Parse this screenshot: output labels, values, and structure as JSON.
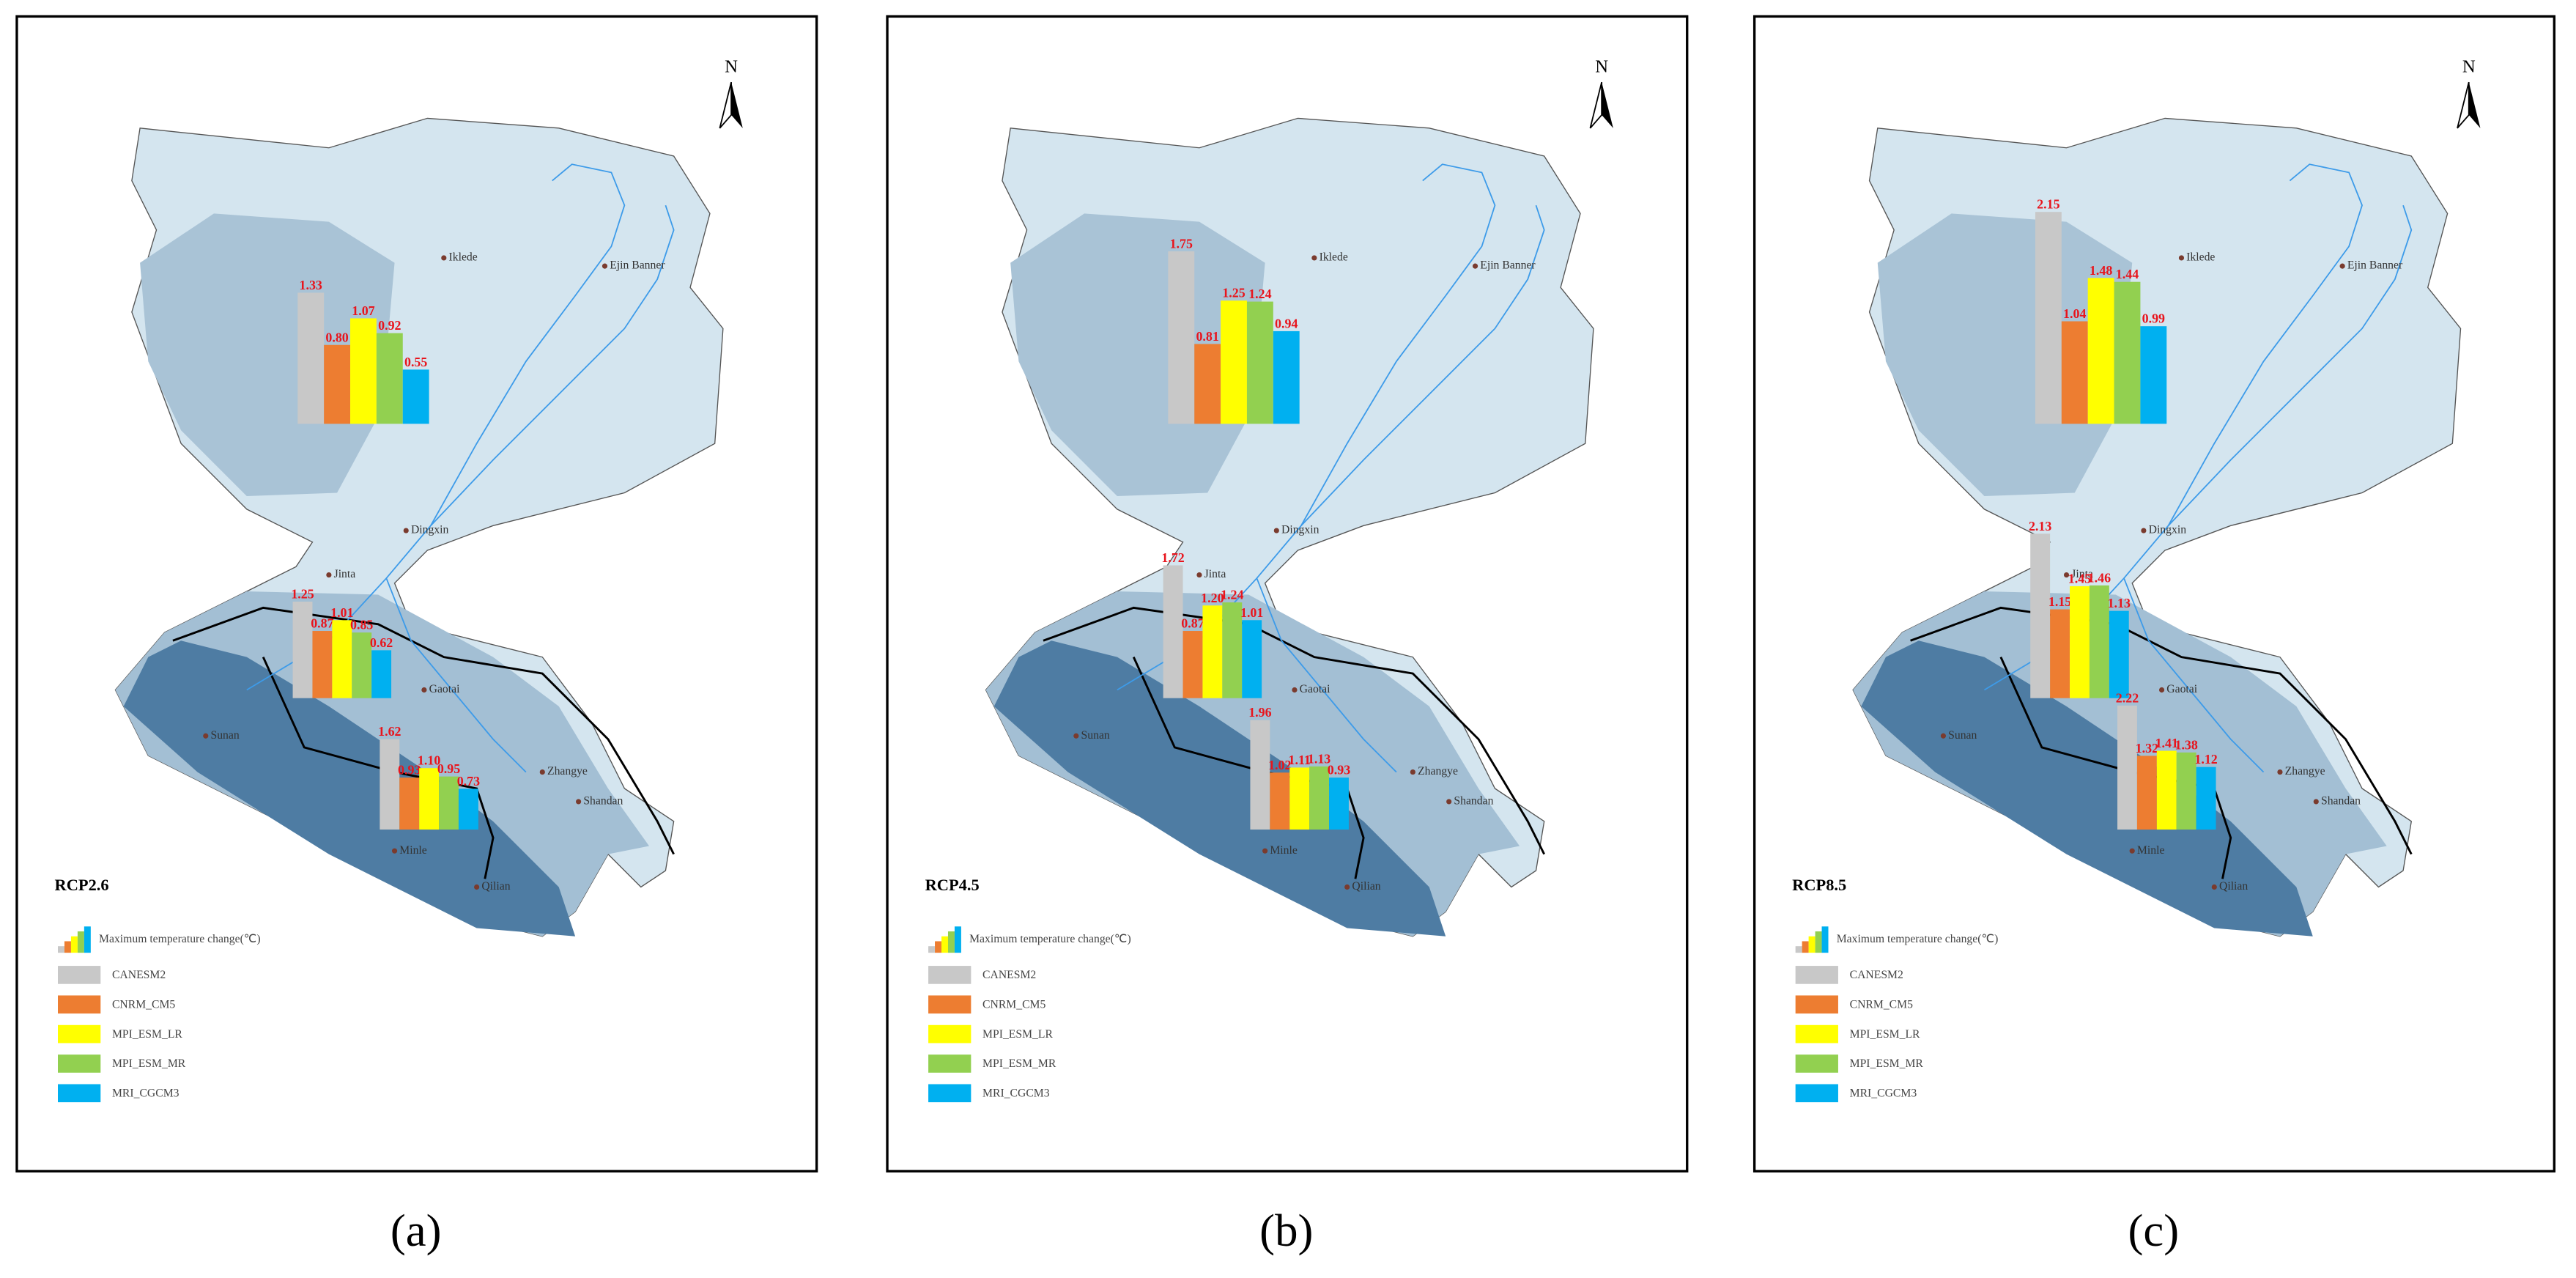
{
  "panels": [
    {
      "label": "(a)",
      "scenario": "RCP2.6",
      "groups": [
        {
          "values": [
            1.33,
            0.8,
            1.07,
            0.92,
            0.55
          ],
          "value_labels": [
            "1.33",
            "0.80",
            "1.07",
            "0.92",
            "0.55"
          ]
        },
        {
          "values": [
            1.25,
            0.87,
            1.01,
            0.85,
            0.62
          ],
          "value_labels": [
            "1.25",
            "0.87",
            "1.01",
            "0.85",
            "0.62"
          ]
        },
        {
          "values": [
            1.62,
            0.93,
            1.1,
            0.95,
            0.73
          ],
          "value_labels": [
            "1.62",
            "0.93",
            "1.10",
            "0.95",
            "0.73"
          ]
        }
      ]
    },
    {
      "label": "(b)",
      "scenario": "RCP4.5",
      "groups": [
        {
          "values": [
            1.75,
            0.81,
            1.25,
            1.24,
            0.94
          ],
          "value_labels": [
            "1.75",
            "0.81",
            "1.25",
            "1.24",
            "0.94"
          ]
        },
        {
          "values": [
            1.72,
            0.87,
            1.2,
            1.24,
            1.01
          ],
          "value_labels": [
            "1.72",
            "0.87",
            "1.20",
            "1.24",
            "1.01"
          ]
        },
        {
          "values": [
            1.96,
            1.02,
            1.11,
            1.13,
            0.93
          ],
          "value_labels": [
            "1.96",
            "1.02",
            "1.11",
            "1.13",
            "0.93"
          ]
        }
      ]
    },
    {
      "label": "(c)",
      "scenario": "RCP8.5",
      "groups": [
        {
          "values": [
            2.15,
            1.04,
            1.48,
            1.44,
            0.99
          ],
          "value_labels": [
            "2.15",
            "1.04",
            "1.48",
            "1.44",
            "0.99"
          ]
        },
        {
          "values": [
            2.13,
            1.15,
            1.45,
            1.46,
            1.13
          ],
          "value_labels": [
            "2.13",
            "1.15",
            "1.45",
            "1.46",
            "1.13"
          ]
        },
        {
          "values": [
            2.22,
            1.32,
            1.41,
            1.38,
            1.12
          ],
          "value_labels": [
            "2.22",
            "1.32",
            "1.41",
            "1.38",
            "1.12"
          ]
        }
      ]
    }
  ],
  "legend": {
    "title": "Maximum temperature change(℃)",
    "items": [
      {
        "name": "CANESM2",
        "color": "#c8c8c8"
      },
      {
        "name": "CNRM_CM5",
        "color": "#ed7d31"
      },
      {
        "name": "MPI_ESM_LR",
        "color": "#ffff00"
      },
      {
        "name": "MPI_ESM_MR",
        "color": "#92d050"
      },
      {
        "name": "MRI_CGCM3",
        "color": "#00b0f0"
      }
    ]
  },
  "towns": [
    "Iklede",
    "Ejin Banner",
    "Dingxin",
    "Jinta",
    "Gaotai",
    "Zhangye",
    "Shandan",
    "Sunan",
    "Minle",
    "Qilian"
  ],
  "north": "N"
}
